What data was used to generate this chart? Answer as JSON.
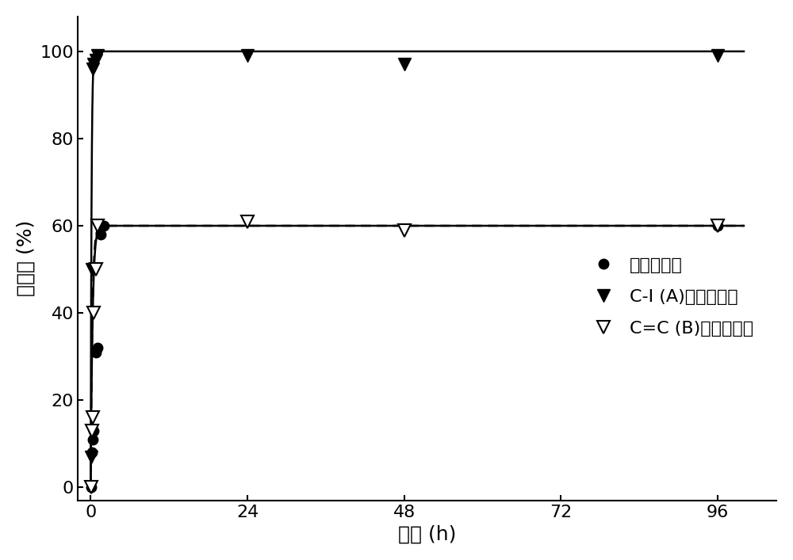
{
  "xlabel": "时间 (h)",
  "ylabel": "转化率 (%)",
  "xlim": [
    -2,
    105
  ],
  "ylim": [
    -3,
    108
  ],
  "xticks": [
    0,
    24,
    48,
    72,
    96
  ],
  "yticks": [
    0,
    20,
    40,
    60,
    80,
    100
  ],
  "series1_label": "重量转化率",
  "series1_x": [
    0.05,
    0.17,
    0.33,
    0.5,
    0.75,
    1.0,
    1.5,
    2.0,
    96
  ],
  "series1_y": [
    0,
    8,
    11,
    13,
    31,
    32,
    58,
    60,
    60
  ],
  "series1_asymptote": 60,
  "series1_rate": 3.5,
  "series2_label": "C-I (A)核磁转化率",
  "series2_x": [
    0.05,
    0.17,
    0.33,
    0.5,
    0.75,
    1.0,
    24,
    48,
    96
  ],
  "series2_y": [
    7,
    50,
    96,
    97,
    98,
    99,
    99,
    97,
    99
  ],
  "series2_asymptote": 100,
  "series2_rate": 8.0,
  "series3_label": "C=C (B)核磁转化率",
  "series3_x": [
    0.05,
    0.17,
    0.33,
    0.5,
    0.75,
    1.0,
    24,
    48,
    96
  ],
  "series3_y": [
    0,
    13,
    16,
    40,
    50,
    60,
    61,
    59,
    60
  ],
  "series3_asymptote": 60,
  "series3_rate": 4.0,
  "background_color": "#ffffff",
  "legend_fontsize": 16,
  "axis_fontsize": 18,
  "tick_fontsize": 16,
  "linewidth": 1.8,
  "marker_size_circle": 9,
  "marker_size_tri": 12
}
